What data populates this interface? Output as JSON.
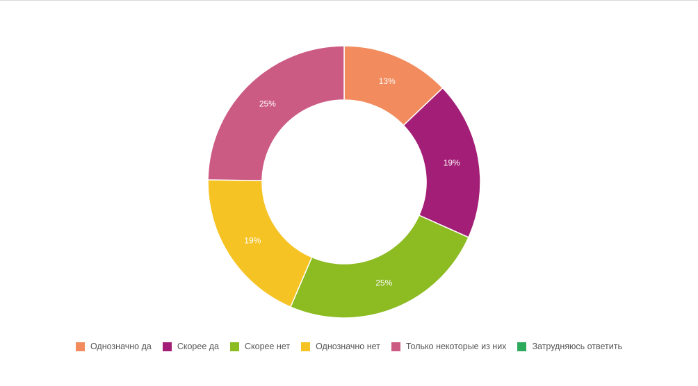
{
  "chart_data": {
    "type": "pie",
    "donut": true,
    "title": "",
    "legend_position": "bottom",
    "slices": [
      {
        "name": "Однозначно да",
        "value": 13,
        "label": "13%",
        "color": "#f28c5e"
      },
      {
        "name": "Скорее да",
        "value": 19,
        "label": "19%",
        "color": "#a31f77"
      },
      {
        "name": "Скорее нет",
        "value": 25,
        "label": "25%",
        "color": "#8cbb22"
      },
      {
        "name": "Однозначно нет",
        "value": 19,
        "label": "19%",
        "color": "#f6c324"
      },
      {
        "name": "Только некоторые из них",
        "value": 25,
        "label": "25%",
        "color": "#cc5b84"
      },
      {
        "name": "Затрудняюсь ответить",
        "value": 0,
        "label": "",
        "color": "#2eaa5c"
      }
    ]
  }
}
